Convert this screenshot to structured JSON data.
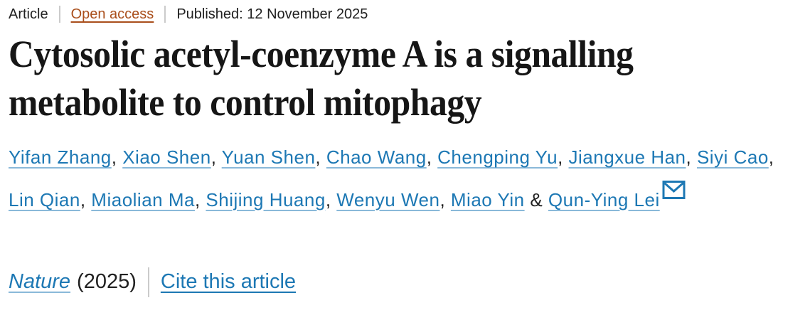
{
  "meta": {
    "type_label": "Article",
    "access_label": "Open access",
    "published": "Published: 12 November 2025"
  },
  "title": "Cytosolic acetyl-coenzyme A is a signalling metabolite to control mitophagy",
  "authors": {
    "names": [
      "Yifan Zhang",
      "Xiao Shen",
      "Yuan Shen",
      "Chao Wang",
      "Chengping Yu",
      "Jiangxue Han",
      "Siyi Cao",
      "Lin Qian",
      "Miaolian Ma",
      "Shijing Huang",
      "Wenyu Wen",
      "Miao Yin",
      "Qun-Ying Lei"
    ],
    "separator": ", ",
    "last_separator": " & ",
    "email_icon": "envelope-icon"
  },
  "journal": {
    "name": "Nature",
    "year": "(2025)",
    "cite_label": "Cite this article"
  },
  "colors": {
    "link_blue": "#1d78b4",
    "link_underline": "#8ab9d9",
    "open_access_rust": "#aa4f1c",
    "text_dark": "#202020",
    "title_black": "#161616",
    "separator_gray": "#cbcbcb"
  }
}
